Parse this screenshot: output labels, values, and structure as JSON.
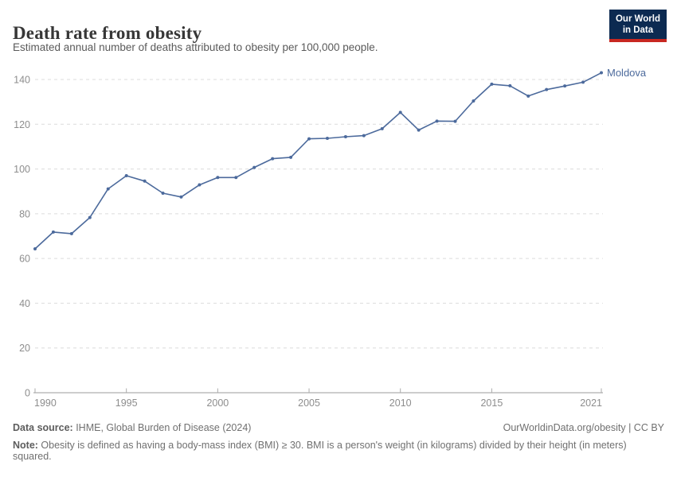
{
  "header": {
    "title": "Death rate from obesity",
    "subtitle": "Estimated annual number of deaths attributed to obesity per 100,000 people."
  },
  "logo": {
    "line1": "Our World",
    "line2": "in Data",
    "bg_color": "#0c2a51",
    "accent_color": "#c82821"
  },
  "chart_data": {
    "type": "line",
    "title": "Death rate from obesity",
    "series": [
      {
        "name": "Moldova",
        "values": [
          64.3,
          71.8,
          71.1,
          78.3,
          91.1,
          97.0,
          94.6,
          89.2,
          87.5,
          92.9,
          96.2,
          96.2,
          100.7,
          104.6,
          105.2,
          113.5,
          113.7,
          114.4,
          114.9,
          118.0,
          125.3,
          117.4,
          121.4,
          121.3,
          130.4,
          137.9,
          137.2,
          132.6,
          135.5,
          137.1,
          138.8,
          143.0
        ]
      }
    ],
    "x": [
      1990,
      1991,
      1992,
      1993,
      1994,
      1995,
      1996,
      1997,
      1998,
      1999,
      2000,
      2001,
      2002,
      2003,
      2004,
      2005,
      2006,
      2007,
      2008,
      2009,
      2010,
      2011,
      2012,
      2013,
      2014,
      2015,
      2016,
      2017,
      2018,
      2019,
      2020,
      2021
    ],
    "xlim": [
      1990,
      2021
    ],
    "ylim": [
      0,
      140
    ],
    "x_ticks": [
      1990,
      1995,
      2000,
      2005,
      2010,
      2015,
      2021
    ],
    "y_ticks": [
      0,
      20,
      40,
      60,
      80,
      100,
      120,
      140
    ],
    "grid": "horizontal-dashed",
    "legend_position": "end-of-line-label",
    "line_color": "#4c6a9c",
    "grid_color": "#dcdcdc",
    "axis_color": "#9b9b9b",
    "tick_label_color": "#8d8d8d",
    "entity_label": "Moldova"
  },
  "footer": {
    "source_label": "Data source:",
    "source_text": " IHME, Global Burden of Disease (2024)",
    "rights": "OurWorldinData.org/obesity | CC BY",
    "note_label": "Note:",
    "note_text": " Obesity is defined as having a body-mass index (BMI) ≥ 30. BMI is a person's weight (in kilograms) divided by their height (in meters) squared."
  }
}
